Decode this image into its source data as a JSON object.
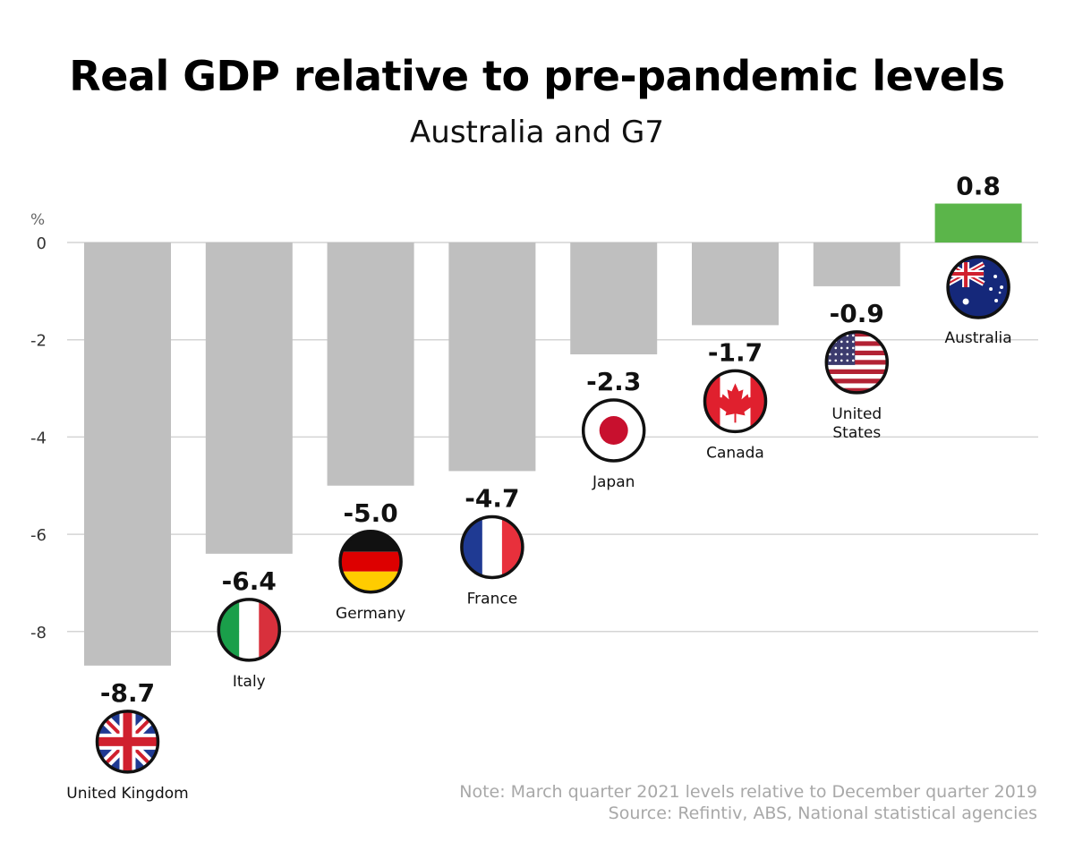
{
  "chart_data": {
    "type": "bar",
    "title": "Real GDP relative to pre-pandemic levels",
    "subtitle": "Australia and G7",
    "xlabel": "",
    "ylabel": "%",
    "ylim": [
      -8.7,
      0.8
    ],
    "yticks": [
      0,
      -2,
      -4,
      -6,
      -8
    ],
    "ytick_labels": [
      "0",
      "-2",
      "-4",
      "-6",
      "-8"
    ],
    "grid": true,
    "categories": [
      "United Kingdom",
      "Italy",
      "Germany",
      "France",
      "Japan",
      "Canada",
      "United States",
      "Australia"
    ],
    "values": [
      -8.7,
      -6.4,
      -5.0,
      -4.7,
      -2.3,
      -1.7,
      -0.9,
      0.8
    ],
    "value_labels": [
      "-8.7",
      "-6.4",
      "-5.0",
      "-4.7",
      "-2.3",
      "-1.7",
      "-0.9",
      "0.8"
    ],
    "category_label_lines": [
      [
        "United Kingdom"
      ],
      [
        "Italy"
      ],
      [
        "Germany"
      ],
      [
        "France"
      ],
      [
        "Japan"
      ],
      [
        "Canada"
      ],
      [
        "United",
        "States"
      ],
      [
        "Australia"
      ]
    ],
    "flags": [
      "uk-flag-icon",
      "italy-flag-icon",
      "germany-flag-icon",
      "france-flag-icon",
      "japan-flag-icon",
      "canada-flag-icon",
      "usa-flag-icon",
      "australia-flag-icon"
    ],
    "colors": {
      "negative": "#bfbfbf",
      "positive": "#5bb54a",
      "grid": "#d4d4d4"
    },
    "note": "Note: March quarter 2021 levels relative to December quarter 2019",
    "source": "Source: Refintiv, ABS, National statistical agencies"
  }
}
